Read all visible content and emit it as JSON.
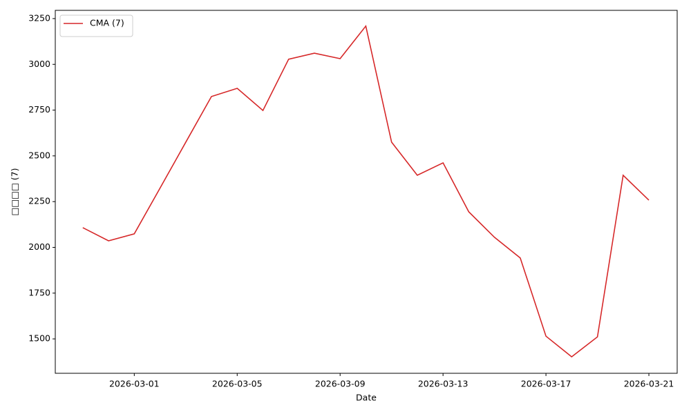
{
  "chart_data": {
    "type": "line",
    "xlabel": "Date",
    "ylabel": "□□□□ (7)",
    "x": [
      "2026-02-27",
      "2026-02-28",
      "2026-03-01",
      "2026-03-02",
      "2026-03-03",
      "2026-03-04",
      "2026-03-05",
      "2026-03-06",
      "2026-03-07",
      "2026-03-08",
      "2026-03-09",
      "2026-03-10",
      "2026-03-11",
      "2026-03-12",
      "2026-03-13",
      "2026-03-14",
      "2026-03-15",
      "2026-03-16",
      "2026-03-17",
      "2026-03-18",
      "2026-03-19",
      "2026-03-20",
      "2026-03-21"
    ],
    "series": [
      {
        "name": "CMA (7)",
        "color": "#d62728",
        "values": [
          2108,
          2036,
          2074,
          2324,
          2574,
          2824,
          2869,
          2748,
          3028,
          3061,
          3031,
          3209,
          2575,
          2394,
          2462,
          2194,
          2055,
          1942,
          1515,
          1402,
          1511,
          2394,
          2258
        ]
      }
    ],
    "xlim": [
      "2026-02-25T22:19",
      "2026-03-22T02:24"
    ],
    "xticks": [
      "2026-03-01",
      "2026-03-05",
      "2026-03-09",
      "2026-03-13",
      "2026-03-17",
      "2026-03-21"
    ],
    "ylim": [
      1312,
      3295
    ],
    "yticks": [
      1500,
      1750,
      2000,
      2250,
      2500,
      2750,
      3000,
      3250
    ],
    "grid": false,
    "legend": "upper left"
  }
}
